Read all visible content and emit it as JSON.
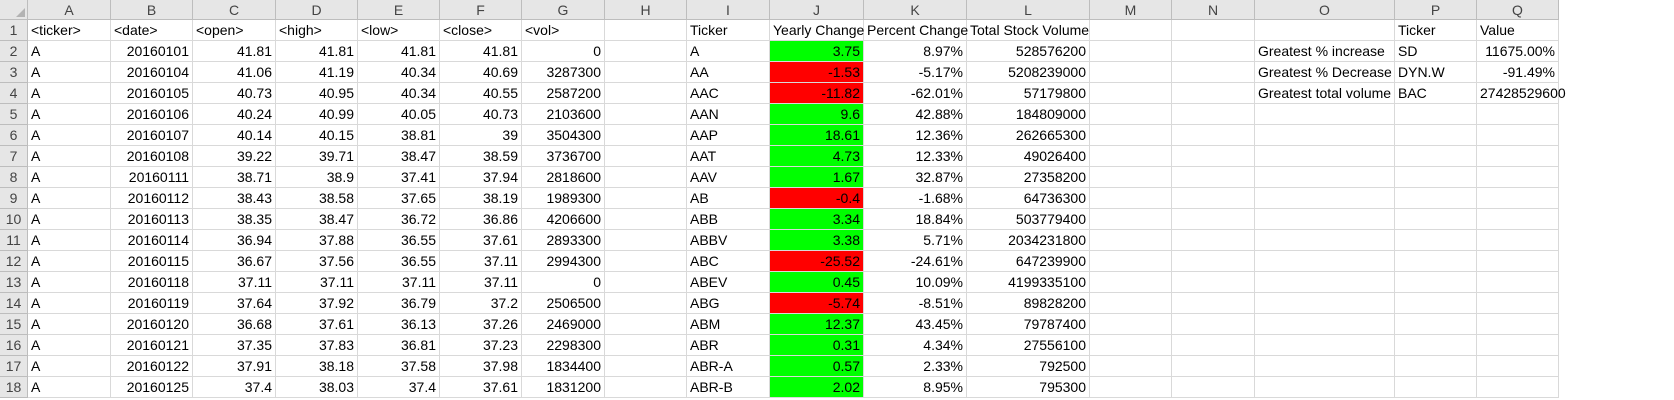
{
  "columns": [
    "A",
    "B",
    "C",
    "D",
    "E",
    "F",
    "G",
    "H",
    "I",
    "J",
    "K",
    "L",
    "M",
    "N",
    "O",
    "P",
    "Q"
  ],
  "row_numbers": [
    "1",
    "2",
    "3",
    "4",
    "5",
    "6",
    "7",
    "8",
    "9",
    "10",
    "11",
    "12",
    "13",
    "14",
    "15",
    "16",
    "17",
    "18"
  ],
  "header_row": {
    "A": "<ticker>",
    "B": "<date>",
    "C": "<open>",
    "D": "<high>",
    "E": "<low>",
    "F": "<close>",
    "G": "<vol>",
    "I": "Ticker",
    "J": "Yearly Change",
    "K": "Percent Change",
    "L": "Total Stock Volume",
    "P": "Ticker",
    "Q": "Value"
  },
  "raw_data": [
    [
      "A",
      "20160101",
      "41.81",
      "41.81",
      "41.81",
      "41.81",
      "0"
    ],
    [
      "A",
      "20160104",
      "41.06",
      "41.19",
      "40.34",
      "40.69",
      "3287300"
    ],
    [
      "A",
      "20160105",
      "40.73",
      "40.95",
      "40.34",
      "40.55",
      "2587200"
    ],
    [
      "A",
      "20160106",
      "40.24",
      "40.99",
      "40.05",
      "40.73",
      "2103600"
    ],
    [
      "A",
      "20160107",
      "40.14",
      "40.15",
      "38.81",
      "39",
      "3504300"
    ],
    [
      "A",
      "20160108",
      "39.22",
      "39.71",
      "38.47",
      "38.59",
      "3736700"
    ],
    [
      "A",
      "20160111",
      "38.71",
      "38.9",
      "37.41",
      "37.94",
      "2818600"
    ],
    [
      "A",
      "20160112",
      "38.43",
      "38.58",
      "37.65",
      "38.19",
      "1989300"
    ],
    [
      "A",
      "20160113",
      "38.35",
      "38.47",
      "36.72",
      "36.86",
      "4206600"
    ],
    [
      "A",
      "20160114",
      "36.94",
      "37.88",
      "36.55",
      "37.61",
      "2893300"
    ],
    [
      "A",
      "20160115",
      "36.67",
      "37.56",
      "36.55",
      "37.11",
      "2994300"
    ],
    [
      "A",
      "20160118",
      "37.11",
      "37.11",
      "37.11",
      "37.11",
      "0"
    ],
    [
      "A",
      "20160119",
      "37.64",
      "37.92",
      "36.79",
      "37.2",
      "2506500"
    ],
    [
      "A",
      "20160120",
      "36.68",
      "37.61",
      "36.13",
      "37.26",
      "2469000"
    ],
    [
      "A",
      "20160121",
      "37.35",
      "37.83",
      "36.81",
      "37.23",
      "2298300"
    ],
    [
      "A",
      "20160122",
      "37.91",
      "38.18",
      "37.58",
      "37.98",
      "1834400"
    ],
    [
      "A",
      "20160125",
      "37.4",
      "38.03",
      "37.4",
      "37.61",
      "1831200"
    ]
  ],
  "summary": [
    {
      "ticker": "A",
      "change": "3.75",
      "pct": "8.97%",
      "volume": "528576200",
      "status": "positive"
    },
    {
      "ticker": "AA",
      "change": "-1.53",
      "pct": "-5.17%",
      "volume": "5208239000",
      "status": "negative"
    },
    {
      "ticker": "AAC",
      "change": "-11.82",
      "pct": "-62.01%",
      "volume": "57179800",
      "status": "negative"
    },
    {
      "ticker": "AAN",
      "change": "9.6",
      "pct": "42.88%",
      "volume": "184809000",
      "status": "positive"
    },
    {
      "ticker": "AAP",
      "change": "18.61",
      "pct": "12.36%",
      "volume": "262665300",
      "status": "positive"
    },
    {
      "ticker": "AAT",
      "change": "4.73",
      "pct": "12.33%",
      "volume": "49026400",
      "status": "positive"
    },
    {
      "ticker": "AAV",
      "change": "1.67",
      "pct": "32.87%",
      "volume": "27358200",
      "status": "positive"
    },
    {
      "ticker": "AB",
      "change": "-0.4",
      "pct": "-1.68%",
      "volume": "64736300",
      "status": "negative"
    },
    {
      "ticker": "ABB",
      "change": "3.34",
      "pct": "18.84%",
      "volume": "503779400",
      "status": "positive"
    },
    {
      "ticker": "ABBV",
      "change": "3.38",
      "pct": "5.71%",
      "volume": "2034231800",
      "status": "positive"
    },
    {
      "ticker": "ABC",
      "change": "-25.52",
      "pct": "-24.61%",
      "volume": "647239900",
      "status": "negative"
    },
    {
      "ticker": "ABEV",
      "change": "0.45",
      "pct": "10.09%",
      "volume": "4199335100",
      "status": "positive"
    },
    {
      "ticker": "ABG",
      "change": "-5.74",
      "pct": "-8.51%",
      "volume": "89828200",
      "status": "negative"
    },
    {
      "ticker": "ABM",
      "change": "12.37",
      "pct": "43.45%",
      "volume": "79787400",
      "status": "positive"
    },
    {
      "ticker": "ABR",
      "change": "0.31",
      "pct": "4.34%",
      "volume": "27556100",
      "status": "positive"
    },
    {
      "ticker": "ABR-A",
      "change": "0.57",
      "pct": "2.33%",
      "volume": "792500",
      "status": "positive"
    },
    {
      "ticker": "ABR-B",
      "change": "2.02",
      "pct": "8.95%",
      "volume": "795300",
      "status": "positive"
    }
  ],
  "greatest": [
    {
      "label": "Greatest % increase",
      "ticker": "SD",
      "value": "11675.00%"
    },
    {
      "label": "Greatest % Decrease",
      "ticker": "DYN.W",
      "value": "-91.49%"
    },
    {
      "label": "Greatest total volume",
      "ticker": "BAC",
      "value": "27428529600"
    }
  ],
  "colors": {
    "positive": "#00ff00",
    "negative": "#ff0000",
    "header_bg": "#e6e6e6",
    "gridline": "#d9d9d9"
  }
}
